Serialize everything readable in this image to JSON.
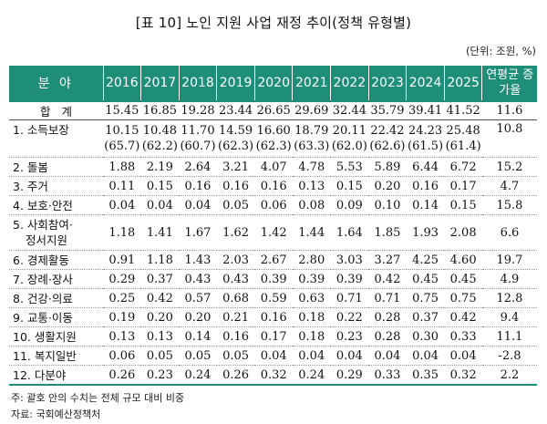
{
  "title": "[표 10] 노인 지원 사업 재정 추이(정책 유형별)",
  "unit": "(단위: 조원, %)",
  "header": {
    "category": "분 야",
    "years": [
      "2016",
      "2017",
      "2018",
      "2019",
      "2020",
      "2021",
      "2022",
      "2023",
      "2024",
      "2025"
    ],
    "growth": "연평균 증가율"
  },
  "total": {
    "label": "합 계",
    "values": [
      "15.45",
      "16.85",
      "19.28",
      "23.44",
      "26.65",
      "29.69",
      "32.44",
      "35.79",
      "39.41",
      "41.52"
    ],
    "growth": "11.6"
  },
  "rows": [
    {
      "label": "1. 소득보장",
      "values": [
        "10.15",
        "10.48",
        "11.70",
        "14.59",
        "16.60",
        "18.79",
        "20.11",
        "22.42",
        "24.23",
        "25.48"
      ],
      "shares": [
        "(65.7)",
        "(62.2)",
        "(60.7)",
        "(62.3)",
        "(62.3)",
        "(63.3)",
        "(62.0)",
        "(62.6)",
        "(61.5)",
        "(61.4)"
      ],
      "growth": "10.8"
    },
    {
      "label": "2. 돌봄",
      "values": [
        "1.88",
        "2.19",
        "2.64",
        "3.21",
        "4.07",
        "4.78",
        "5.53",
        "5.89",
        "6.44",
        "6.72"
      ],
      "growth": "15.2"
    },
    {
      "label": "3. 주거",
      "values": [
        "0.11",
        "0.15",
        "0.16",
        "0.16",
        "0.16",
        "0.13",
        "0.15",
        "0.20",
        "0.16",
        "0.17"
      ],
      "growth": "4.7"
    },
    {
      "label": "4. 보호·안전",
      "values": [
        "0.04",
        "0.04",
        "0.04",
        "0.05",
        "0.06",
        "0.08",
        "0.09",
        "0.10",
        "0.14",
        "0.15"
      ],
      "growth": "15.8"
    },
    {
      "label": "5. 사회참여·",
      "label2": "정서지원",
      "values": [
        "1.18",
        "1.41",
        "1.67",
        "1.62",
        "1.42",
        "1.44",
        "1.64",
        "1.85",
        "1.93",
        "2.08"
      ],
      "growth": "6.6"
    },
    {
      "label": "6. 경제활동",
      "values": [
        "0.91",
        "1.18",
        "1.43",
        "2.03",
        "2.67",
        "2.80",
        "3.03",
        "3.27",
        "4.25",
        "4.60"
      ],
      "growth": "19.7"
    },
    {
      "label": "7. 장례·장사",
      "values": [
        "0.29",
        "0.37",
        "0.43",
        "0.43",
        "0.39",
        "0.39",
        "0.39",
        "0.42",
        "0.45",
        "0.45"
      ],
      "growth": "4.9"
    },
    {
      "label": "8. 건강·의료",
      "values": [
        "0.25",
        "0.42",
        "0.57",
        "0.68",
        "0.59",
        "0.63",
        "0.71",
        "0.71",
        "0.75",
        "0.75"
      ],
      "growth": "12.8"
    },
    {
      "label": "9. 교통·이동",
      "values": [
        "0.19",
        "0.20",
        "0.20",
        "0.21",
        "0.16",
        "0.18",
        "0.22",
        "0.28",
        "0.37",
        "0.42"
      ],
      "growth": "9.4"
    },
    {
      "label": "10. 생활지원",
      "values": [
        "0.13",
        "0.13",
        "0.14",
        "0.16",
        "0.17",
        "0.18",
        "0.23",
        "0.28",
        "0.30",
        "0.33"
      ],
      "growth": "11.1"
    },
    {
      "label": "11. 복지일반",
      "values": [
        "0.06",
        "0.05",
        "0.05",
        "0.05",
        "0.04",
        "0.04",
        "0.04",
        "0.04",
        "0.04",
        "0.04"
      ],
      "growth": "-2.8"
    },
    {
      "label": "12. 다분야",
      "values": [
        "0.26",
        "0.23",
        "0.24",
        "0.26",
        "0.32",
        "0.24",
        "0.29",
        "0.33",
        "0.35",
        "0.32"
      ],
      "growth": "2.2"
    }
  ],
  "note": "주: 괄호 안의 수치는 전체 규모 대비 비중",
  "source": "자료: 국회예산정책처"
}
